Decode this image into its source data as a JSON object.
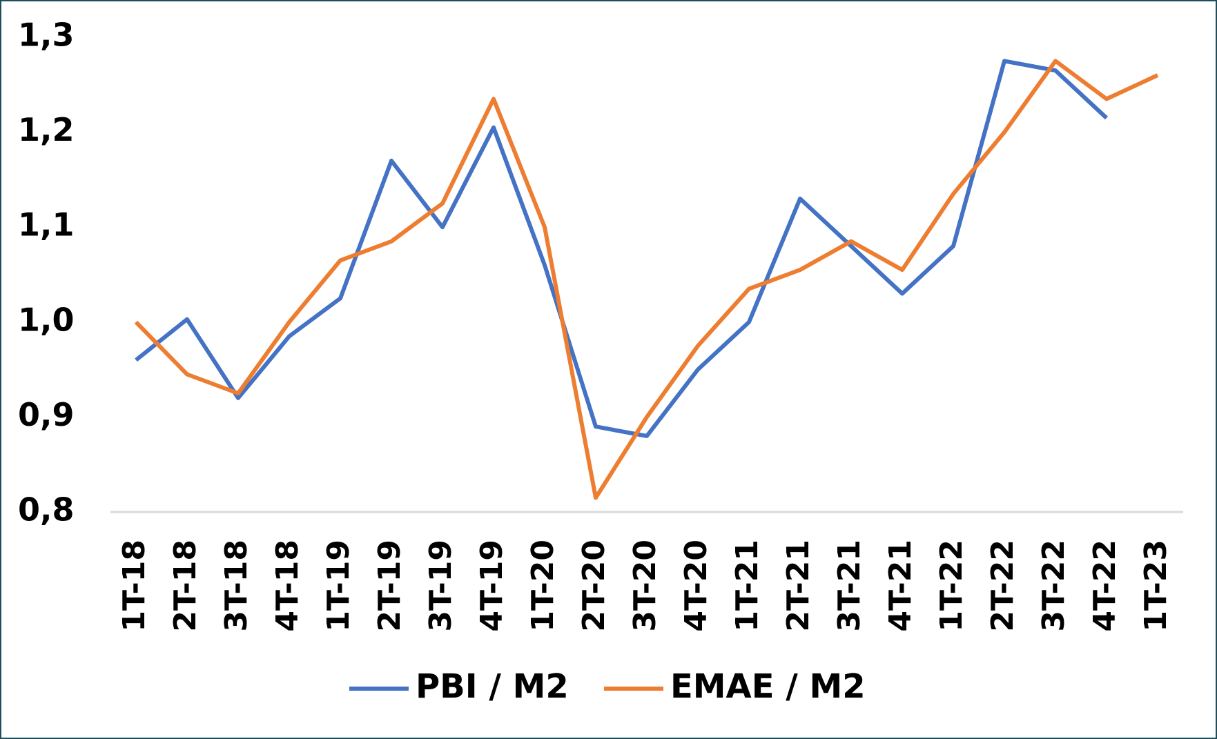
{
  "chart_data": {
    "type": "line",
    "categories": [
      "1T-18",
      "2T-18",
      "3T-18",
      "4T-18",
      "1T-19",
      "2T-19",
      "3T-19",
      "4T-19",
      "1T-20",
      "2T-20",
      "3T-20",
      "4T-20",
      "1T-21",
      "2T-21",
      "3T-21",
      "4T-21",
      "1T-22",
      "2T-22",
      "3T-22",
      "4T-22",
      "1T-23"
    ],
    "series": [
      {
        "name": "PBI / M2",
        "color": "#4472c4",
        "values": [
          0.96,
          1.003,
          0.92,
          0.985,
          1.025,
          1.17,
          1.1,
          1.205,
          1.06,
          0.89,
          0.88,
          0.95,
          1.0,
          1.13,
          1.08,
          1.03,
          1.08,
          1.275,
          1.265,
          1.215,
          null
        ]
      },
      {
        "name": "EMAE / M2",
        "color": "#ed7d31",
        "values": [
          1.0,
          0.945,
          0.925,
          1.0,
          1.065,
          1.085,
          1.125,
          1.235,
          1.1,
          0.815,
          0.9,
          0.975,
          1.035,
          1.055,
          1.085,
          1.055,
          1.135,
          1.2,
          1.275,
          1.235,
          1.26
        ]
      }
    ],
    "ylim": [
      0.8,
      1.3
    ],
    "yticks": [
      {
        "value": 0.8,
        "label": "0,8"
      },
      {
        "value": 0.9,
        "label": "0,9"
      },
      {
        "value": 1.0,
        "label": "1,0"
      },
      {
        "value": 1.1,
        "label": "1,1"
      },
      {
        "value": 1.2,
        "label": "1,2"
      },
      {
        "value": 1.3,
        "label": "1,3"
      }
    ],
    "legend": "bottom"
  }
}
